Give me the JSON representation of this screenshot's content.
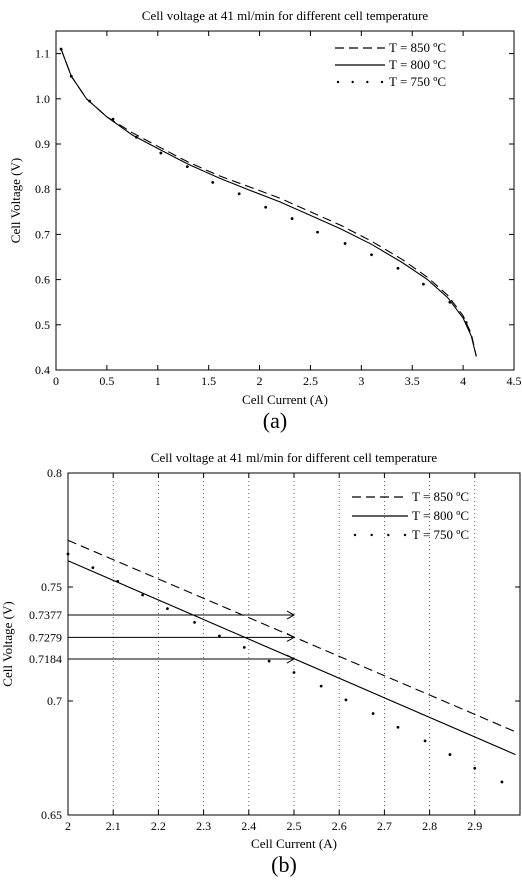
{
  "chart_data": [
    {
      "type": "line",
      "caption": "(a)",
      "title": "Cell voltage at 41 ml/min for different cell temperature",
      "xlabel": "Cell Current (A)",
      "ylabel": "Cell Voltage (V)",
      "xlim": [
        0,
        4.5
      ],
      "ylim": [
        0.4,
        1.15
      ],
      "xticks": [
        0,
        0.5,
        1,
        1.5,
        2,
        2.5,
        3,
        3.5,
        4,
        4.5
      ],
      "xtick_labels": [
        "0",
        "0.5",
        "1",
        "1.5",
        "2",
        "2.5",
        "3",
        "3.5",
        "4",
        "4.5"
      ],
      "yticks": [
        0.4,
        0.5,
        0.6,
        0.7,
        0.8,
        0.9,
        1.0,
        1.1
      ],
      "ytick_labels": [
        "0.4",
        "0.5",
        "0.6",
        "0.7",
        "0.8",
        "0.9",
        "1.0",
        "1.1"
      ],
      "grid": false,
      "legend": "top-right",
      "series": [
        {
          "name": "T = 850 ºC",
          "style": "dashed",
          "x": [
            0.05,
            0.15,
            0.3,
            0.5,
            0.75,
            1.0,
            1.3,
            1.6,
            1.9,
            2.2,
            2.5,
            2.8,
            3.1,
            3.4,
            3.65,
            3.85,
            4.0,
            4.08,
            4.13
          ],
          "y": [
            1.11,
            1.05,
            1.0,
            0.96,
            0.925,
            0.895,
            0.86,
            0.83,
            0.805,
            0.78,
            0.75,
            0.72,
            0.685,
            0.645,
            0.605,
            0.565,
            0.52,
            0.48,
            0.43
          ]
        },
        {
          "name": "T = 800 ºC",
          "style": "solid",
          "x": [
            0.05,
            0.15,
            0.3,
            0.5,
            0.75,
            1.0,
            1.3,
            1.6,
            1.9,
            2.2,
            2.5,
            2.8,
            3.1,
            3.4,
            3.65,
            3.85,
            4.0,
            4.08,
            4.13
          ],
          "y": [
            1.11,
            1.05,
            1.0,
            0.96,
            0.92,
            0.89,
            0.855,
            0.825,
            0.798,
            0.772,
            0.742,
            0.712,
            0.678,
            0.638,
            0.6,
            0.56,
            0.515,
            0.475,
            0.43
          ]
        },
        {
          "name": "T = 750 ºC",
          "style": "dotted",
          "x": [
            0.05,
            0.15,
            0.33,
            0.56,
            0.79,
            1.03,
            1.29,
            1.54,
            1.8,
            2.06,
            2.32,
            2.57,
            2.84,
            3.1,
            3.36,
            3.61,
            3.87,
            4.03
          ],
          "y": [
            1.11,
            1.05,
            0.995,
            0.955,
            0.915,
            0.88,
            0.85,
            0.815,
            0.79,
            0.76,
            0.735,
            0.705,
            0.68,
            0.655,
            0.625,
            0.59,
            0.55,
            0.505
          ]
        }
      ]
    },
    {
      "type": "line",
      "caption": "(b)",
      "title": "Cell voltage at 41 ml/min for different cell temperature",
      "xlabel": "Cell Current (A)",
      "ylabel": "Cell Voltage (V)",
      "xlim": [
        2,
        3
      ],
      "ylim": [
        0.65,
        0.8
      ],
      "xticks": [
        2,
        2.1,
        2.2,
        2.3,
        2.4,
        2.5,
        2.6,
        2.7,
        2.8,
        2.9
      ],
      "xtick_labels": [
        "2",
        "2.1",
        "2.2",
        "2.3",
        "2.4",
        "2.5",
        "2.6",
        "2.7",
        "2.8",
        "2.9"
      ],
      "yticks": [
        0.65,
        0.7,
        0.75,
        0.8
      ],
      "ytick_labels": [
        "0.65",
        "0.7",
        "0.75",
        "0.8"
      ],
      "grid": "vertical",
      "legend": "top-right",
      "annotations": [
        {
          "label": "0.7377",
          "y": 0.7377,
          "x_end": 2.5
        },
        {
          "label": "0.7279",
          "y": 0.7279,
          "x_end": 2.5
        },
        {
          "label": "0.7184",
          "y": 0.7184,
          "x_end": 2.5
        }
      ],
      "series": [
        {
          "name": "T = 850 ºC",
          "style": "dashed",
          "x": [
            2.0,
            2.99
          ],
          "y": [
            0.7705,
            0.6865
          ]
        },
        {
          "name": "T = 800 ºC",
          "style": "solid",
          "x": [
            2.0,
            2.99
          ],
          "y": [
            0.7615,
            0.6765
          ]
        },
        {
          "name": "T = 750 ºC",
          "style": "dotted",
          "x": [
            2.0,
            2.055,
            2.11,
            2.165,
            2.22,
            2.28,
            2.335,
            2.39,
            2.445,
            2.5,
            2.56,
            2.615,
            2.675,
            2.73,
            2.79,
            2.845,
            2.9,
            2.96
          ],
          "y": [
            0.7645,
            0.7585,
            0.7525,
            0.7465,
            0.7405,
            0.7345,
            0.7285,
            0.7235,
            0.7175,
            0.7125,
            0.7065,
            0.7005,
            0.6945,
            0.6885,
            0.6825,
            0.6765,
            0.6705,
            0.6645
          ]
        }
      ]
    }
  ]
}
